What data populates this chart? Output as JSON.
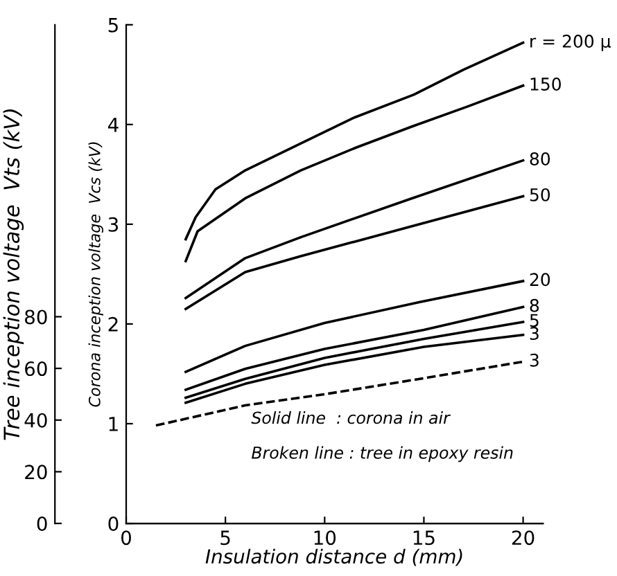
{
  "chart_data": {
    "type": "line",
    "xlabel": "Insulation distance d (mm)",
    "ylabel": "Corona inception voltage  Vcs (kV)",
    "y2label": "Tree inception voltage  Vts (kV)",
    "xlim": [
      0,
      21
    ],
    "xticks": [
      0,
      5,
      10,
      15,
      20
    ],
    "ylim": [
      0,
      5
    ],
    "yticks": [
      0,
      1,
      2,
      3,
      4,
      5
    ],
    "y2lim": [
      0,
      193
    ],
    "y2ticks": [
      0,
      20,
      40,
      60,
      80
    ],
    "grid": false,
    "legend": false,
    "marker": "none",
    "series": [
      {
        "name": "r = 200 μ",
        "color": "#000000",
        "line_style": "solid",
        "x": [
          3,
          3.5,
          4.5,
          6,
          9,
          11.5,
          14.5,
          17,
          20
        ],
        "values": [
          2.85,
          3.07,
          3.35,
          3.54,
          3.83,
          4.07,
          4.3,
          4.55,
          4.82
        ]
      },
      {
        "name": "150",
        "color": "#000000",
        "line_style": "solid",
        "x": [
          3,
          3.6,
          6,
          8.8,
          11.6,
          14.4,
          17.2,
          20
        ],
        "values": [
          2.63,
          2.93,
          3.26,
          3.54,
          3.77,
          3.98,
          4.18,
          4.39
        ]
      },
      {
        "name": "80",
        "color": "#000000",
        "line_style": "solid",
        "x": [
          3,
          6,
          8.8,
          14.4,
          20
        ],
        "values": [
          2.26,
          2.66,
          2.87,
          3.26,
          3.64
        ]
      },
      {
        "name": "50",
        "color": "#000000",
        "line_style": "solid",
        "x": [
          3,
          6,
          8.8,
          14.4,
          20
        ],
        "values": [
          2.15,
          2.52,
          2.68,
          2.98,
          3.28
        ]
      },
      {
        "name": "20",
        "color": "#000000",
        "line_style": "solid",
        "x": [
          3,
          6,
          10,
          14.8,
          20
        ],
        "values": [
          1.52,
          1.78,
          2.01,
          2.22,
          2.43
        ]
      },
      {
        "name": "8",
        "color": "#000000",
        "line_style": "solid",
        "x": [
          3,
          6,
          10,
          15,
          20
        ],
        "values": [
          1.34,
          1.55,
          1.75,
          1.94,
          2.17
        ]
      },
      {
        "name": "5",
        "color": "#000000",
        "line_style": "solid",
        "x": [
          3,
          6,
          10,
          15,
          20
        ],
        "values": [
          1.26,
          1.45,
          1.66,
          1.85,
          2.02
        ]
      },
      {
        "name": "3",
        "color": "#000000",
        "line_style": "solid",
        "x": [
          3,
          6,
          10,
          15,
          20
        ],
        "values": [
          1.21,
          1.4,
          1.59,
          1.77,
          1.89
        ]
      },
      {
        "name": "3",
        "color": "#000000",
        "line_style": "dashed",
        "axis": "y2",
        "x": [
          1.5,
          6,
          10,
          15,
          20
        ],
        "values": [
          37.9,
          45.7,
          50,
          56.2,
          62.6
        ]
      }
    ],
    "annotations": [
      "Solid line  : corona in air",
      "Broken line : tree in epoxy resin"
    ]
  }
}
